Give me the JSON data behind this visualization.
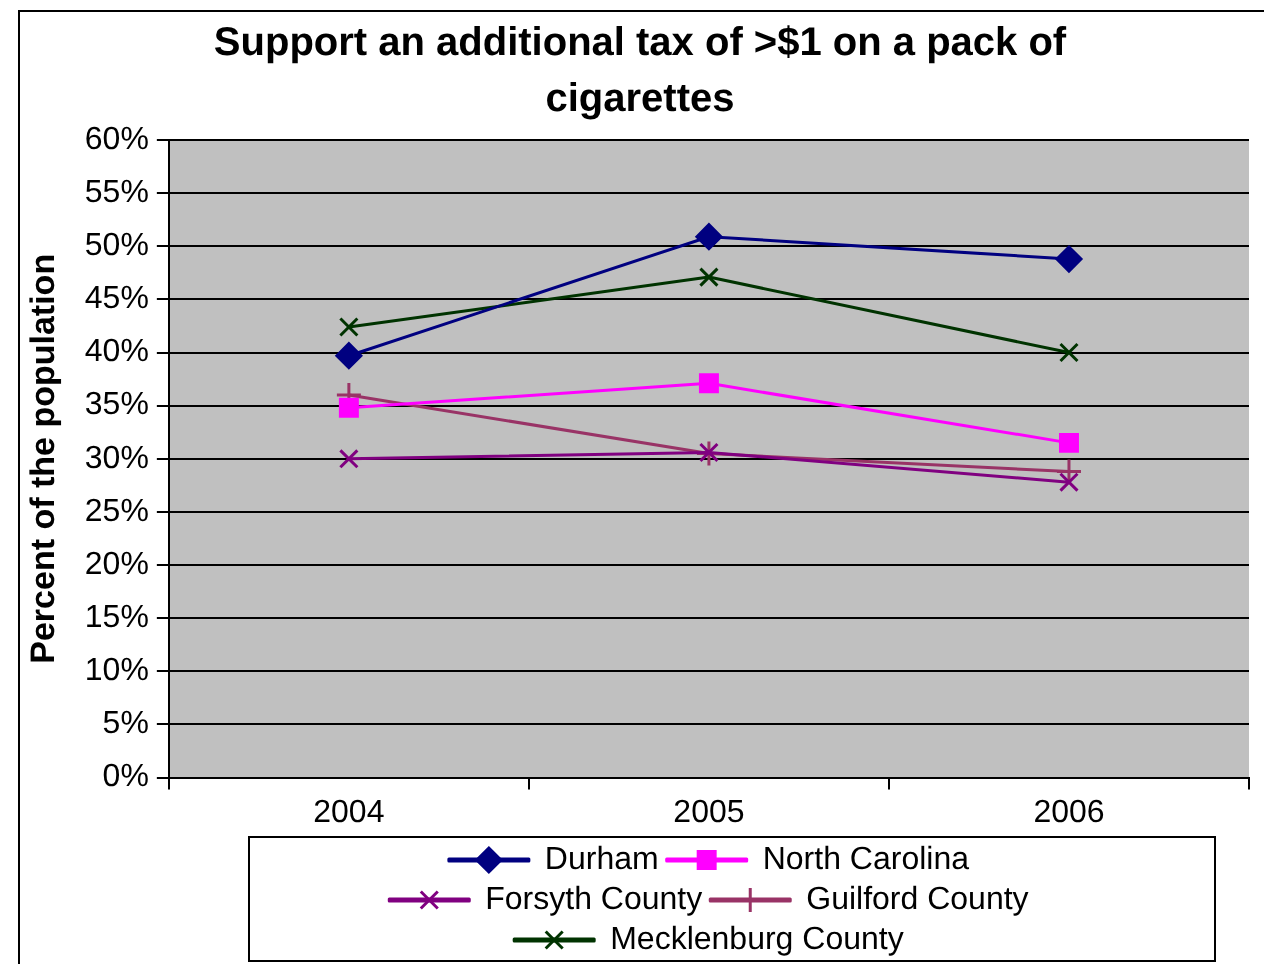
{
  "chart_data": {
    "type": "line",
    "title": "Support an additional tax of >$1 on a pack of cigarettes",
    "ylabel": "Percent of the population",
    "categories": [
      "2004",
      "2005",
      "2006"
    ],
    "series": [
      {
        "name": "Durham",
        "color": "#000080",
        "marker": "diamond",
        "values": [
          39.7,
          50.9,
          48.8
        ]
      },
      {
        "name": "North Carolina",
        "color": "#ff00ff",
        "marker": "square",
        "values": [
          34.8,
          37.1,
          31.5
        ]
      },
      {
        "name": "Forsyth County",
        "color": "#800080",
        "marker": "cross",
        "values": [
          30.0,
          30.6,
          27.8
        ]
      },
      {
        "name": "Guilford County",
        "color": "#993366",
        "marker": "plus",
        "values": [
          36.0,
          30.5,
          28.8
        ]
      },
      {
        "name": "Mecklenburg County",
        "color": "#003300",
        "marker": "cross",
        "values": [
          42.4,
          47.1,
          40.0
        ]
      }
    ],
    "ylim": [
      0,
      60
    ],
    "yticks": [
      {
        "value": 0,
        "label": "0%"
      },
      {
        "value": 5,
        "label": "5%"
      },
      {
        "value": 10,
        "label": "10%"
      },
      {
        "value": 15,
        "label": "15%"
      },
      {
        "value": 20,
        "label": "20%"
      },
      {
        "value": 25,
        "label": "25%"
      },
      {
        "value": 30,
        "label": "30%"
      },
      {
        "value": 35,
        "label": "35%"
      },
      {
        "value": 40,
        "label": "40%"
      },
      {
        "value": 45,
        "label": "45%"
      },
      {
        "value": 50,
        "label": "50%"
      },
      {
        "value": 55,
        "label": "55%"
      },
      {
        "value": 60,
        "label": "60%"
      }
    ],
    "grid": "y",
    "legend": "bottom"
  }
}
